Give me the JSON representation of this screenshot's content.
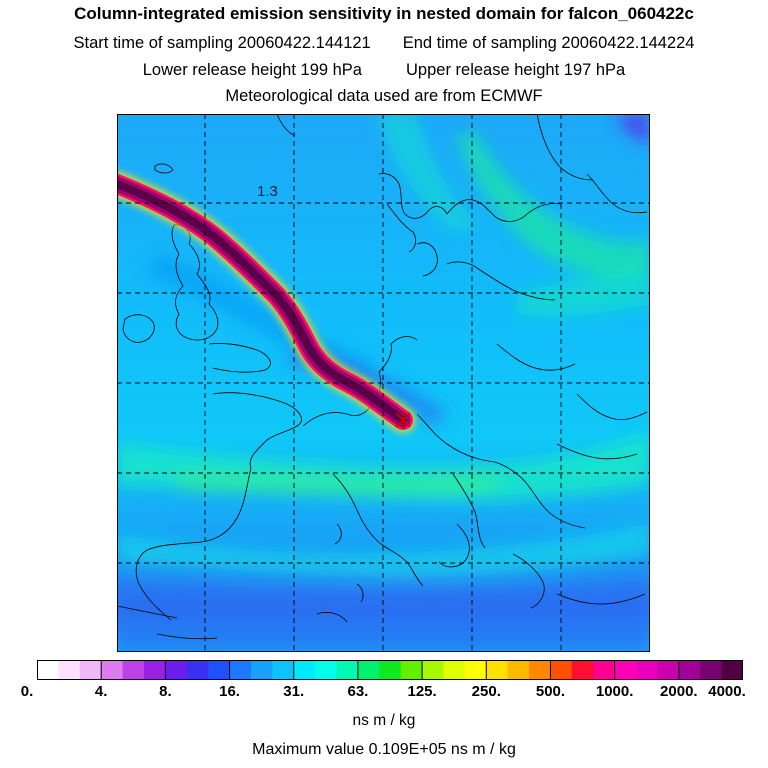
{
  "header": {
    "title": "Column-integrated emission sensitivity in nested domain for falcon_060422c",
    "start_label": "Start time of sampling 20060422.144121",
    "end_label": "End time of sampling 20060422.144224",
    "lower_label": "Lower release height  199 hPa",
    "upper_label": "Upper release height  197 hPa",
    "met_label": "Meteorological data used are from ECMWF"
  },
  "map": {
    "contour_label": "1.3"
  },
  "colorbar": {
    "tick_labels": [
      "0.",
      "4.",
      "8.",
      "16.",
      "31.",
      "63.",
      "125.",
      "250.",
      "500.",
      "1000.",
      "2000.",
      "4000."
    ],
    "colors": [
      "#ffffff",
      "#ffe0ff",
      "#f0b8f8",
      "#dc7cf0",
      "#c040e8",
      "#9a20e8",
      "#6a1ee8",
      "#3a30f0",
      "#2050f8",
      "#1c78ff",
      "#18a0ff",
      "#10c0ff",
      "#00e8ff",
      "#00ffe8",
      "#00f8b0",
      "#00f070",
      "#10e820",
      "#60f000",
      "#a8f800",
      "#e0ff00",
      "#ffff00",
      "#ffe000",
      "#ffb800",
      "#ff8800",
      "#ff5000",
      "#ff1030",
      "#ff0090",
      "#ff00b8",
      "#e800c0",
      "#c800b0",
      "#a00098",
      "#780070",
      "#500040"
    ],
    "unit": "ns m / kg"
  },
  "footer": {
    "max_value": "Maximum value  0.109E+05 ns m / kg"
  }
}
